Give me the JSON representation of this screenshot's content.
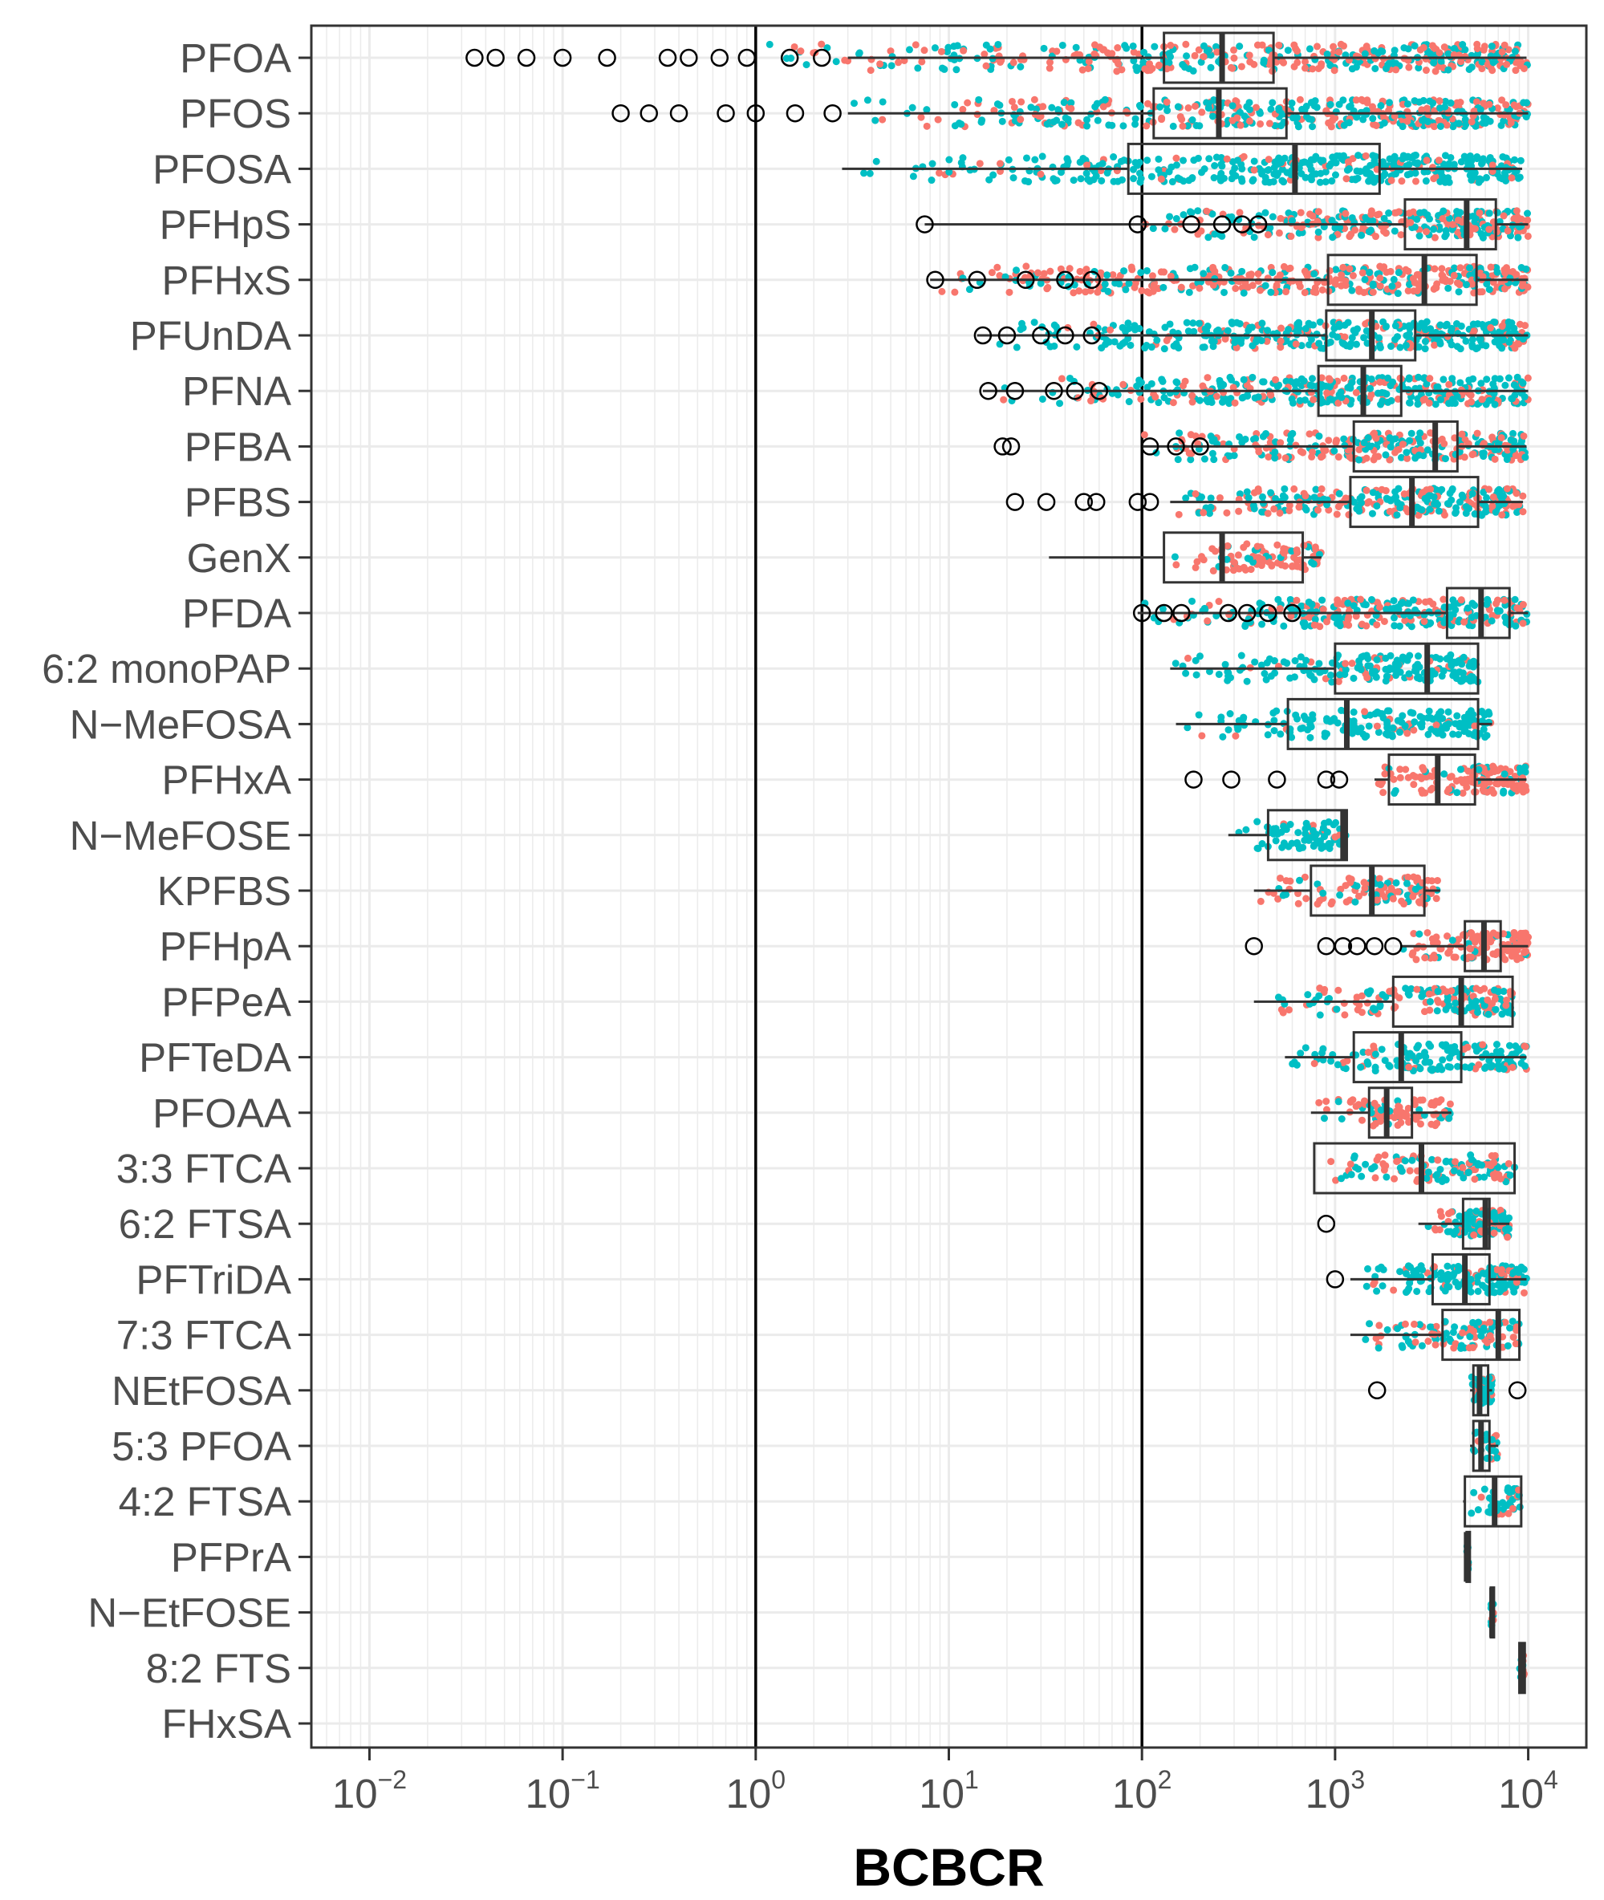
{
  "chart_data": {
    "type": "boxplot",
    "xlabel": "BCBCR",
    "x_scale": "log10",
    "xlim": [
      0.005,
      20000
    ],
    "x_ticks": [
      {
        "base": "10",
        "exp": "−2",
        "value": 0.01
      },
      {
        "base": "10",
        "exp": "−1",
        "value": 0.1
      },
      {
        "base": "10",
        "exp": "0",
        "value": 1
      },
      {
        "base": "10",
        "exp": "1",
        "value": 10
      },
      {
        "base": "10",
        "exp": "2",
        "value": 100
      },
      {
        "base": "10",
        "exp": "3",
        "value": 1000
      },
      {
        "base": "10",
        "exp": "4",
        "value": 10000
      }
    ],
    "reference_lines": [
      1,
      100
    ],
    "grid": true,
    "colors": {
      "series_a": "#F8766D",
      "series_b": "#00BFC4",
      "box": "#333333",
      "grid": "#EBEBEB",
      "ref_line": "#000000"
    },
    "categories": [
      {
        "name": "PFOA",
        "min": 3,
        "q1": 130,
        "median": 260,
        "q3": 480,
        "max": 9800,
        "outliers": [
          0.035,
          0.045,
          0.065,
          0.1,
          0.17,
          0.35,
          0.45,
          0.65,
          0.9,
          1.5,
          2.2
        ],
        "jitter": [
          1,
          10000
        ],
        "mix": 0.45
      },
      {
        "name": "PFOS",
        "min": 3,
        "q1": 115,
        "median": 250,
        "q3": 560,
        "max": 10000,
        "outliers": [
          0.2,
          0.28,
          0.4,
          0.7,
          1.0,
          1.6,
          2.5
        ],
        "jitter": [
          2.5,
          10000
        ],
        "mix": 0.55
      },
      {
        "name": "PFOSA",
        "min": 2.8,
        "q1": 85,
        "median": 620,
        "q3": 1700,
        "max": 9300,
        "outliers": [],
        "jitter": [
          2.8,
          9300
        ],
        "mix": 0.9
      },
      {
        "name": "PFHpS",
        "min": 7.5,
        "q1": 2300,
        "median": 4800,
        "q3": 6800,
        "max": 10000,
        "outliers": [
          7.5,
          95,
          180,
          260,
          330,
          400
        ],
        "jitter": [
          95,
          10000
        ],
        "mix": 0.5
      },
      {
        "name": "PFHxS",
        "min": 8,
        "q1": 920,
        "median": 2900,
        "q3": 5400,
        "max": 10000,
        "outliers": [
          8.5,
          14,
          25,
          40,
          55
        ],
        "jitter": [
          8,
          10000
        ],
        "mix": 0.35
      },
      {
        "name": "PFUnDA",
        "min": 14,
        "q1": 900,
        "median": 1550,
        "q3": 2600,
        "max": 10000,
        "outliers": [
          15,
          20,
          30,
          40,
          55
        ],
        "jitter": [
          14,
          10000
        ],
        "mix": 0.8
      },
      {
        "name": "PFNA",
        "min": 15,
        "q1": 820,
        "median": 1400,
        "q3": 2200,
        "max": 10000,
        "outliers": [
          16,
          22,
          35,
          45,
          60
        ],
        "jitter": [
          15,
          10000
        ],
        "mix": 0.7
      },
      {
        "name": "PFBA",
        "min": 100,
        "q1": 1250,
        "median": 3300,
        "q3": 4300,
        "max": 9800,
        "outliers": [
          19,
          21,
          110,
          150,
          200
        ],
        "jitter": [
          100,
          9800
        ],
        "mix": 0.5
      },
      {
        "name": "PFBS",
        "min": 140,
        "q1": 1200,
        "median": 2500,
        "q3": 5500,
        "max": 9400,
        "outliers": [
          22,
          32,
          50,
          58,
          95,
          110
        ],
        "jitter": [
          130,
          9400
        ],
        "mix": 0.6
      },
      {
        "name": "GenX",
        "min": 33,
        "q1": 130,
        "median": 260,
        "q3": 680,
        "max": 850,
        "outliers": [],
        "jitter": [
          130,
          850
        ],
        "mix": 0.2
      },
      {
        "name": "PFDA",
        "min": 95,
        "q1": 3800,
        "median": 5700,
        "q3": 8000,
        "max": 10000,
        "outliers": [
          100,
          130,
          160,
          280,
          350,
          450,
          600
        ],
        "jitter": [
          95,
          10000
        ],
        "mix": 0.65
      },
      {
        "name": "6:2 monoPAP",
        "min": 140,
        "q1": 1000,
        "median": 3000,
        "q3": 5500,
        "max": 5500,
        "outliers": [],
        "jitter": [
          140,
          5500
        ],
        "mix": 0.85
      },
      {
        "name": "N−MeFOSA",
        "min": 150,
        "q1": 570,
        "median": 1150,
        "q3": 5500,
        "max": 6500,
        "outliers": [],
        "jitter": [
          150,
          6500
        ],
        "mix": 0.85
      },
      {
        "name": "PFHxA",
        "min": 1600,
        "q1": 1900,
        "median": 3400,
        "q3": 5300,
        "max": 9800,
        "outliers": [
          185,
          290,
          500,
          900,
          1050
        ],
        "jitter": [
          1600,
          9800
        ],
        "mix": 0.2
      },
      {
        "name": "N−MeFOSE",
        "min": 280,
        "q1": 450,
        "median": 1100,
        "q3": 1150,
        "max": 1150,
        "outliers": [],
        "jitter": [
          280,
          1150
        ],
        "mix": 0.9
      },
      {
        "name": "KPFBS",
        "min": 380,
        "q1": 750,
        "median": 1550,
        "q3": 2900,
        "max": 3500,
        "outliers": [],
        "jitter": [
          380,
          3500
        ],
        "mix": 0.3
      },
      {
        "name": "PFHpA",
        "min": 2200,
        "q1": 4700,
        "median": 5900,
        "q3": 7200,
        "max": 10000,
        "outliers": [
          380,
          900,
          1100,
          1300,
          1600,
          2000
        ],
        "jitter": [
          2200,
          10000
        ],
        "mix": 0.15
      },
      {
        "name": "PFPeA",
        "min": 380,
        "q1": 2000,
        "median": 4500,
        "q3": 8300,
        "max": 8300,
        "outliers": [],
        "jitter": [
          380,
          8300
        ],
        "mix": 0.5
      },
      {
        "name": "PFTeDA",
        "min": 550,
        "q1": 1250,
        "median": 2200,
        "q3": 4500,
        "max": 9800,
        "outliers": [],
        "jitter": [
          550,
          9800
        ],
        "mix": 0.8
      },
      {
        "name": "PFOAA",
        "min": 750,
        "q1": 1500,
        "median": 1850,
        "q3": 2500,
        "max": 4000,
        "outliers": [],
        "jitter": [
          750,
          4000
        ],
        "mix": 0.25
      },
      {
        "name": "3:3 FTCA",
        "min": 780,
        "q1": 780,
        "median": 2800,
        "q3": 8500,
        "max": 8500,
        "outliers": [],
        "jitter": [
          780,
          8500
        ],
        "mix": 0.5
      },
      {
        "name": "6:2 FTSA",
        "min": 2700,
        "q1": 4600,
        "median": 6000,
        "q3": 6300,
        "max": 8000,
        "outliers": [
          900
        ],
        "jitter": [
          2700,
          8000
        ],
        "mix": 0.6
      },
      {
        "name": "PFTriDA",
        "min": 1200,
        "q1": 3200,
        "median": 4700,
        "q3": 6300,
        "max": 9800,
        "outliers": [
          1000
        ],
        "jitter": [
          1200,
          9800
        ],
        "mix": 0.85
      },
      {
        "name": "7:3 FTCA",
        "min": 1200,
        "q1": 3600,
        "median": 7000,
        "q3": 9000,
        "max": 9000,
        "outliers": [],
        "jitter": [
          1200,
          9000
        ],
        "mix": 0.6
      },
      {
        "name": "NEtFOSA",
        "min": 5000,
        "q1": 5200,
        "median": 5600,
        "q3": 6200,
        "max": 6500,
        "outliers": [
          1650,
          8800
        ],
        "jitter": [
          5000,
          6500
        ],
        "mix": 0.8
      },
      {
        "name": "5:3 PFOA",
        "min": 5000,
        "q1": 5200,
        "median": 5700,
        "q3": 6300,
        "max": 7000,
        "outliers": [],
        "jitter": [
          5000,
          7000
        ],
        "mix": 0.6
      },
      {
        "name": "4:2 FTSA",
        "min": 4600,
        "q1": 4700,
        "median": 6700,
        "q3": 9200,
        "max": 9200,
        "outliers": [],
        "jitter": [
          4600,
          9200
        ],
        "mix": 0.9
      },
      {
        "name": "PFPrA",
        "min": 4800,
        "q1": 4800,
        "median": 4800,
        "q3": 4900,
        "max": 4900,
        "outliers": [],
        "jitter": [
          4800,
          4900
        ],
        "mix": 0.9
      },
      {
        "name": "N−EtFOSE",
        "min": 6400,
        "q1": 6400,
        "median": 6500,
        "q3": 6600,
        "max": 6600,
        "outliers": [],
        "jitter": [
          6400,
          6600
        ],
        "mix": 0.9
      },
      {
        "name": "8:2 FTS",
        "min": 9000,
        "q1": 9000,
        "median": 9300,
        "q3": 9600,
        "max": 9600,
        "outliers": [],
        "jitter": [
          9000,
          9600
        ],
        "mix": 0.5
      },
      {
        "name": "FHxSA",
        "min": null,
        "q1": null,
        "median": null,
        "q3": null,
        "max": null,
        "outliers": [],
        "jitter": null,
        "mix": 0.5
      }
    ]
  }
}
